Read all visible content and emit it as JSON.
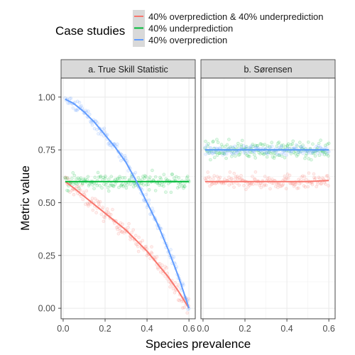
{
  "legend": {
    "title": "Case studies",
    "entries": [
      {
        "label": "40% overprediction & 40% underprediction",
        "color": "#F8766D"
      },
      {
        "label": "40% underprediction",
        "color": "#00BA38"
      },
      {
        "label": "40% overprediction",
        "color": "#619CFF"
      }
    ]
  },
  "chart_data": {
    "type": "scatter",
    "xlabel": "Species prevalence",
    "ylabel": "Metric value",
    "xlim": [
      -0.01,
      0.63
    ],
    "ylim": [
      -0.05,
      1.09
    ],
    "x_ticks": [
      0.0,
      0.2,
      0.4,
      0.6
    ],
    "x_tick_labels": [
      "0.0",
      "0.2",
      "0.4",
      "0.6"
    ],
    "y_ticks": [
      0.0,
      0.25,
      0.5,
      0.75,
      1.0
    ],
    "y_tick_labels": [
      "0.00",
      "0.25",
      "0.50",
      "0.75",
      "1.00"
    ],
    "grid": true,
    "legend_position": "top",
    "facets": [
      {
        "title": "a. True Skill Statistic",
        "series": [
          {
            "name": "40% overprediction & 40% underprediction",
            "color": "#F8766D",
            "x": [
              0.01,
              0.05,
              0.1,
              0.15,
              0.2,
              0.25,
              0.3,
              0.35,
              0.4,
              0.45,
              0.5,
              0.55,
              0.6
            ],
            "y": [
              0.6,
              0.57,
              0.53,
              0.49,
              0.45,
              0.41,
              0.37,
              0.32,
              0.27,
              0.21,
              0.15,
              0.08,
              0.0
            ],
            "spread": 0.02
          },
          {
            "name": "40% underprediction",
            "color": "#00BA38",
            "x": [
              0.01,
              0.1,
              0.2,
              0.3,
              0.4,
              0.5,
              0.6
            ],
            "y": [
              0.6,
              0.6,
              0.6,
              0.6,
              0.6,
              0.6,
              0.6
            ],
            "spread": 0.02
          },
          {
            "name": "40% overprediction",
            "color": "#619CFF",
            "x": [
              0.01,
              0.05,
              0.1,
              0.15,
              0.2,
              0.25,
              0.3,
              0.35,
              0.4,
              0.45,
              0.5,
              0.55,
              0.6
            ],
            "y": [
              0.99,
              0.97,
              0.93,
              0.88,
              0.82,
              0.76,
              0.69,
              0.6,
              0.5,
              0.4,
              0.28,
              0.15,
              0.0
            ],
            "spread": 0.015
          }
        ]
      },
      {
        "title": "b. Sørensen",
        "series": [
          {
            "name": "40% overprediction & 40% underprediction",
            "color": "#F8766D",
            "x": [
              0.01,
              0.1,
              0.2,
              0.3,
              0.4,
              0.5,
              0.6
            ],
            "y": [
              0.6,
              0.6,
              0.6,
              0.6,
              0.6,
              0.6,
              0.605
            ],
            "spread": 0.018
          },
          {
            "name": "40% underprediction",
            "color": "#00BA38",
            "x": [
              0.01,
              0.1,
              0.2,
              0.3,
              0.4,
              0.5,
              0.6
            ],
            "y": [
              0.75,
              0.75,
              0.75,
              0.75,
              0.75,
              0.75,
              0.75
            ],
            "spread": 0.02
          },
          {
            "name": "40% overprediction",
            "color": "#619CFF",
            "x": [
              0.01,
              0.1,
              0.2,
              0.3,
              0.4,
              0.5,
              0.6
            ],
            "y": [
              0.75,
              0.75,
              0.75,
              0.75,
              0.75,
              0.75,
              0.75
            ],
            "spread": 0.012
          }
        ]
      }
    ]
  }
}
